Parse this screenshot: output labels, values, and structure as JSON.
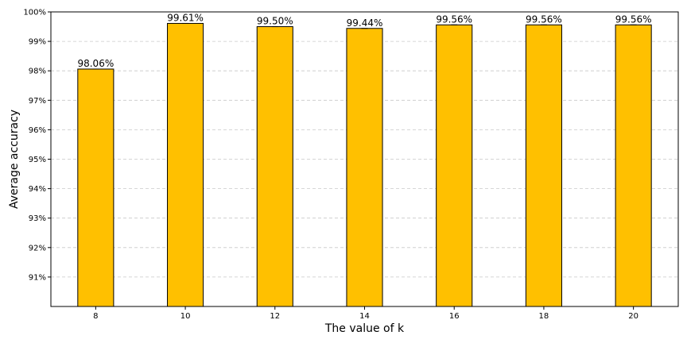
{
  "chart_data": {
    "type": "bar",
    "title": "",
    "xlabel": "The value of k",
    "ylabel": "Average accuracy",
    "categories": [
      "8",
      "10",
      "12",
      "14",
      "16",
      "18",
      "20"
    ],
    "values": [
      98.06,
      99.61,
      99.5,
      99.44,
      99.56,
      99.56,
      99.56
    ],
    "data_labels": [
      "98.06%",
      "99.61%",
      "99.50%",
      "99.44%",
      "99.56%",
      "99.56%",
      "99.56%"
    ],
    "error_bars": true,
    "ylim": [
      90,
      100
    ],
    "yticks": [
      91,
      92,
      93,
      94,
      95,
      96,
      97,
      98,
      99,
      100
    ],
    "ytick_labels": [
      "91%",
      "92%",
      "93%",
      "94%",
      "95%",
      "96%",
      "97%",
      "98%",
      "99%",
      "100%"
    ],
    "grid": "horizontal dashed",
    "colors": {
      "bar": "#FFC000",
      "edge": "#000000",
      "grid": "#c8c8c8"
    }
  }
}
